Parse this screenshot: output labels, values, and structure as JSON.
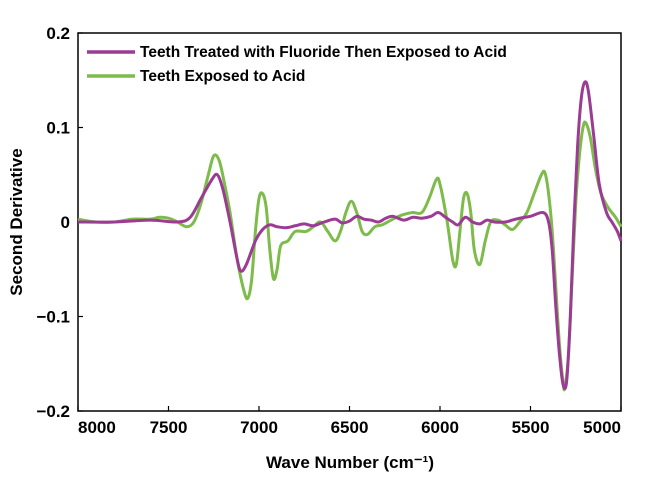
{
  "chart_data": {
    "type": "line",
    "title": "",
    "xlabel": "Wave Number (cm⁻¹)",
    "ylabel": "Second Derivative",
    "xlim": [
      8000,
      5000
    ],
    "ylim": [
      -0.2,
      0.2
    ],
    "x_reversed": true,
    "xticks": [
      8000,
      7500,
      7000,
      6500,
      6000,
      5500,
      5000
    ],
    "xtick_labels": [
      "8000",
      "7500",
      "7000",
      "6500",
      "6000",
      "5500",
      "5000"
    ],
    "yticks": [
      0.2,
      0.1,
      0,
      -0.1,
      -0.2
    ],
    "ytick_labels": [
      "0.2",
      "0.1",
      "0",
      "−0.1",
      "−0.2"
    ],
    "grid": false,
    "legend_position": "top-left",
    "series": [
      {
        "name": "Teeth Treated with Fluoride Then Exposed to Acid",
        "color": "#9b3b93",
        "points": [
          [
            8000,
            0
          ],
          [
            7800,
            0
          ],
          [
            7600,
            0.002
          ],
          [
            7450,
            0
          ],
          [
            7380,
            0.005
          ],
          [
            7320,
            0.025
          ],
          [
            7260,
            0.045
          ],
          [
            7230,
            0.05
          ],
          [
            7200,
            0.035
          ],
          [
            7160,
            0
          ],
          [
            7120,
            -0.04
          ],
          [
            7100,
            -0.052
          ],
          [
            7070,
            -0.045
          ],
          [
            7020,
            -0.02
          ],
          [
            6980,
            -0.008
          ],
          [
            6940,
            -0.003
          ],
          [
            6900,
            -0.005
          ],
          [
            6850,
            -0.006
          ],
          [
            6800,
            -0.004
          ],
          [
            6750,
            -0.002
          ],
          [
            6700,
            -0.004
          ],
          [
            6640,
            0
          ],
          [
            6580,
            0.003
          ],
          [
            6540,
            -0.001
          ],
          [
            6500,
            0.001
          ],
          [
            6460,
            0.006
          ],
          [
            6420,
            0.003
          ],
          [
            6380,
            0.002
          ],
          [
            6340,
            0
          ],
          [
            6300,
            0.004
          ],
          [
            6260,
            0.006
          ],
          [
            6200,
            0.002
          ],
          [
            6150,
            0.005
          ],
          [
            6100,
            0.004
          ],
          [
            6050,
            0.006
          ],
          [
            6010,
            0.01
          ],
          [
            5970,
            0.005
          ],
          [
            5930,
            0
          ],
          [
            5900,
            -0.003
          ],
          [
            5860,
            0.005
          ],
          [
            5820,
            0
          ],
          [
            5780,
            -0.002
          ],
          [
            5740,
            0.002
          ],
          [
            5700,
            0
          ],
          [
            5640,
            0
          ],
          [
            5600,
            0.002
          ],
          [
            5560,
            0.004
          ],
          [
            5500,
            0.006
          ],
          [
            5430,
            0.01
          ],
          [
            5400,
            0
          ],
          [
            5380,
            -0.03
          ],
          [
            5360,
            -0.09
          ],
          [
            5340,
            -0.14
          ],
          [
            5320,
            -0.172
          ],
          [
            5300,
            -0.168
          ],
          [
            5280,
            -0.1
          ],
          [
            5260,
            0
          ],
          [
            5240,
            0.08
          ],
          [
            5220,
            0.13
          ],
          [
            5200,
            0.148
          ],
          [
            5180,
            0.138
          ],
          [
            5150,
            0.09
          ],
          [
            5120,
            0.04
          ],
          [
            5080,
            0.01
          ],
          [
            5050,
            0
          ],
          [
            5020,
            -0.01
          ],
          [
            5000,
            -0.02
          ]
        ]
      },
      {
        "name": "Teeth Exposed to Acid",
        "color": "#7dbb4a",
        "points": [
          [
            8000,
            0.003
          ],
          [
            7900,
            0
          ],
          [
            7800,
            0
          ],
          [
            7700,
            0.003
          ],
          [
            7600,
            0.003
          ],
          [
            7550,
            0.005
          ],
          [
            7500,
            0.004
          ],
          [
            7450,
            0
          ],
          [
            7400,
            -0.005
          ],
          [
            7360,
            0
          ],
          [
            7320,
            0.02
          ],
          [
            7280,
            0.05
          ],
          [
            7250,
            0.07
          ],
          [
            7220,
            0.065
          ],
          [
            7190,
            0.04
          ],
          [
            7160,
            0.01
          ],
          [
            7120,
            -0.04
          ],
          [
            7080,
            -0.075
          ],
          [
            7060,
            -0.08
          ],
          [
            7040,
            -0.06
          ],
          [
            7020,
            -0.01
          ],
          [
            7000,
            0.025
          ],
          [
            6980,
            0.03
          ],
          [
            6960,
            0.015
          ],
          [
            6940,
            -0.03
          ],
          [
            6920,
            -0.06
          ],
          [
            6900,
            -0.05
          ],
          [
            6880,
            -0.025
          ],
          [
            6840,
            -0.02
          ],
          [
            6800,
            -0.01
          ],
          [
            6740,
            -0.01
          ],
          [
            6700,
            -0.005
          ],
          [
            6660,
            0
          ],
          [
            6620,
            -0.01
          ],
          [
            6580,
            -0.02
          ],
          [
            6550,
            -0.01
          ],
          [
            6520,
            0.01
          ],
          [
            6490,
            0.022
          ],
          [
            6460,
            0.01
          ],
          [
            6430,
            -0.01
          ],
          [
            6400,
            -0.013
          ],
          [
            6360,
            -0.005
          ],
          [
            6320,
            -0.003
          ],
          [
            6280,
            0.001
          ],
          [
            6240,
            0.005
          ],
          [
            6200,
            0.008
          ],
          [
            6150,
            0.01
          ],
          [
            6100,
            0.01
          ],
          [
            6060,
            0.025
          ],
          [
            6020,
            0.045
          ],
          [
            6000,
            0.04
          ],
          [
            5960,
            0.0
          ],
          [
            5930,
            -0.04
          ],
          [
            5910,
            -0.045
          ],
          [
            5890,
            -0.01
          ],
          [
            5870,
            0.025
          ],
          [
            5850,
            0.03
          ],
          [
            5830,
            0.01
          ],
          [
            5810,
            -0.03
          ],
          [
            5780,
            -0.045
          ],
          [
            5750,
            -0.02
          ],
          [
            5720,
            0
          ],
          [
            5680,
            0.002
          ],
          [
            5640,
            -0.003
          ],
          [
            5600,
            -0.008
          ],
          [
            5560,
            0
          ],
          [
            5520,
            0.01
          ],
          [
            5480,
            0.03
          ],
          [
            5440,
            0.05
          ],
          [
            5420,
            0.052
          ],
          [
            5400,
            0.03
          ],
          [
            5380,
            -0.01
          ],
          [
            5360,
            -0.07
          ],
          [
            5340,
            -0.13
          ],
          [
            5320,
            -0.17
          ],
          [
            5310,
            -0.175
          ],
          [
            5290,
            -0.14
          ],
          [
            5270,
            -0.06
          ],
          [
            5250,
            0.02
          ],
          [
            5230,
            0.07
          ],
          [
            5210,
            0.1
          ],
          [
            5195,
            0.105
          ],
          [
            5170,
            0.09
          ],
          [
            5140,
            0.055
          ],
          [
            5110,
            0.03
          ],
          [
            5070,
            0.015
          ],
          [
            5030,
            0.005
          ],
          [
            5000,
            -0.005
          ]
        ]
      }
    ]
  }
}
